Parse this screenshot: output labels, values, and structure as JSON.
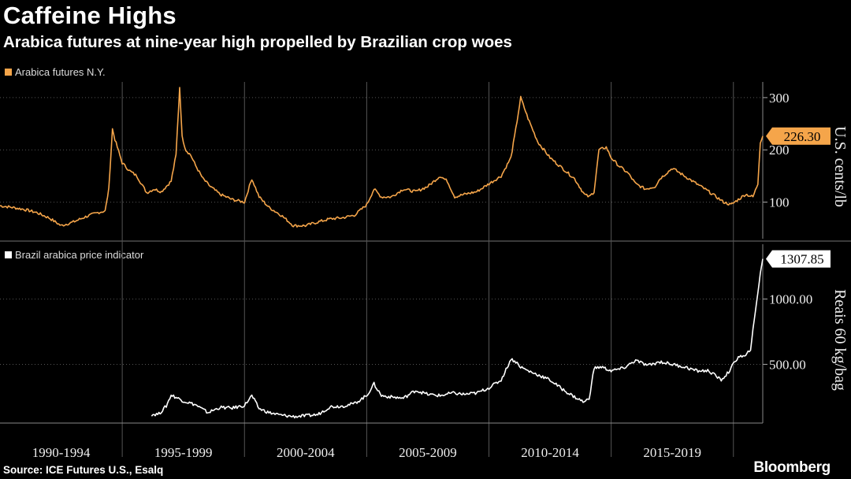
{
  "header": {
    "title": "Caffeine Highs",
    "subtitle": "Arabica futures at nine-year high propelled by Brazilian crop woes"
  },
  "footer": {
    "source": "Source: ICE Futures U.S., Esalq",
    "brand": "Bloomberg"
  },
  "colors": {
    "arabica": "#f5a54a",
    "brazil": "#ffffff",
    "grid": "#555555",
    "background": "#000000"
  },
  "chart_data": [
    {
      "type": "line",
      "legend": "Arabica futures N.Y.",
      "ylabel": "U.S. cents/lb",
      "yticks": [
        100,
        200,
        300
      ],
      "ylim": [
        30,
        330
      ],
      "last_value_label": "226.30",
      "x_range": [
        1990.0,
        2021.2
      ],
      "series": [
        {
          "name": "Arabica futures N.Y.",
          "x": [
            1990.0,
            1990.5,
            1991.0,
            1991.5,
            1992.0,
            1992.5,
            1993.0,
            1993.5,
            1994.0,
            1994.3,
            1994.45,
            1994.6,
            1994.7,
            1994.8,
            1995.0,
            1995.3,
            1995.6,
            1996.0,
            1996.3,
            1996.6,
            1997.0,
            1997.2,
            1997.35,
            1997.45,
            1997.6,
            1997.8,
            1998.0,
            1998.3,
            1998.6,
            1999.0,
            1999.5,
            2000.0,
            2000.3,
            2000.6,
            2001.0,
            2001.5,
            2002.0,
            2002.5,
            2003.0,
            2003.5,
            2004.0,
            2004.5,
            2005.0,
            2005.3,
            2005.6,
            2006.0,
            2006.5,
            2007.0,
            2007.5,
            2008.0,
            2008.3,
            2008.6,
            2009.0,
            2009.5,
            2010.0,
            2010.5,
            2010.9,
            2011.1,
            2011.3,
            2011.6,
            2012.0,
            2012.5,
            2013.0,
            2013.5,
            2013.9,
            2014.1,
            2014.3,
            2014.5,
            2014.8,
            2015.0,
            2015.3,
            2015.7,
            2016.0,
            2016.4,
            2016.8,
            2017.0,
            2017.5,
            2018.0,
            2018.5,
            2019.0,
            2019.3,
            2019.6,
            2019.9,
            2020.2,
            2020.5,
            2020.8,
            2021.0,
            2021.1,
            2021.2
          ],
          "y": [
            93,
            90,
            86,
            80,
            70,
            55,
            62,
            72,
            80,
            83,
            125,
            240,
            220,
            205,
            175,
            160,
            150,
            118,
            125,
            120,
            140,
            190,
            320,
            225,
            200,
            190,
            170,
            145,
            130,
            115,
            105,
            100,
            145,
            110,
            90,
            75,
            55,
            55,
            62,
            68,
            70,
            75,
            95,
            125,
            110,
            110,
            125,
            120,
            130,
            150,
            140,
            110,
            115,
            120,
            135,
            150,
            185,
            240,
            300,
            260,
            215,
            185,
            165,
            145,
            115,
            110,
            120,
            200,
            205,
            185,
            170,
            155,
            135,
            125,
            130,
            145,
            165,
            150,
            135,
            120,
            110,
            100,
            95,
            105,
            115,
            110,
            135,
            215,
            226.3
          ]
        }
      ]
    },
    {
      "type": "line",
      "legend": "Brazil arabica price indicator",
      "ylabel": "Reais 60 kg/bag",
      "yticks": [
        500.0,
        1000.0
      ],
      "ytick_labels": [
        "500.00",
        "1000.00"
      ],
      "ylim": [
        50,
        1420
      ],
      "last_value_label": "1307.85",
      "x_range": [
        1990.0,
        2021.2
      ],
      "series": [
        {
          "name": "Brazil arabica price indicator",
          "x": [
            1996.2,
            1996.5,
            1996.8,
            1997.0,
            1997.5,
            1998.0,
            1998.5,
            1999.0,
            1999.5,
            2000.0,
            2000.3,
            2000.6,
            2001.0,
            2001.5,
            2002.0,
            2002.5,
            2003.0,
            2003.5,
            2004.0,
            2004.5,
            2005.0,
            2005.3,
            2005.6,
            2006.0,
            2006.5,
            2007.0,
            2007.5,
            2008.0,
            2008.5,
            2009.0,
            2009.5,
            2010.0,
            2010.5,
            2010.9,
            2011.1,
            2011.3,
            2011.6,
            2012.0,
            2012.5,
            2013.0,
            2013.5,
            2013.9,
            2014.1,
            2014.3,
            2014.6,
            2015.0,
            2015.5,
            2016.0,
            2016.5,
            2017.0,
            2017.5,
            2018.0,
            2018.5,
            2019.0,
            2019.5,
            2019.8,
            2020.0,
            2020.2,
            2020.5,
            2020.7,
            2020.9,
            2021.0,
            2021.1,
            2021.2
          ],
          "y": [
            115,
            120,
            180,
            265,
            220,
            190,
            130,
            170,
            165,
            185,
            260,
            160,
            130,
            110,
            100,
            105,
            115,
            175,
            180,
            200,
            260,
            350,
            260,
            250,
            240,
            300,
            270,
            260,
            280,
            270,
            280,
            320,
            380,
            540,
            520,
            480,
            450,
            420,
            380,
            310,
            250,
            210,
            240,
            470,
            480,
            450,
            470,
            530,
            490,
            520,
            500,
            480,
            450,
            450,
            380,
            440,
            500,
            560,
            560,
            620,
            900,
            1050,
            1200,
            1307.85
          ]
        }
      ]
    }
  ],
  "x_axis": {
    "period_labels": [
      "1990-1994",
      "1995-1999",
      "2000-2004",
      "2005-2009",
      "2010-2014",
      "2015-2019"
    ],
    "period_starts": [
      1990,
      1995,
      2000,
      2005,
      2010,
      2015
    ],
    "period_ends": [
      1995,
      2000,
      2005,
      2010,
      2015,
      2020
    ]
  }
}
